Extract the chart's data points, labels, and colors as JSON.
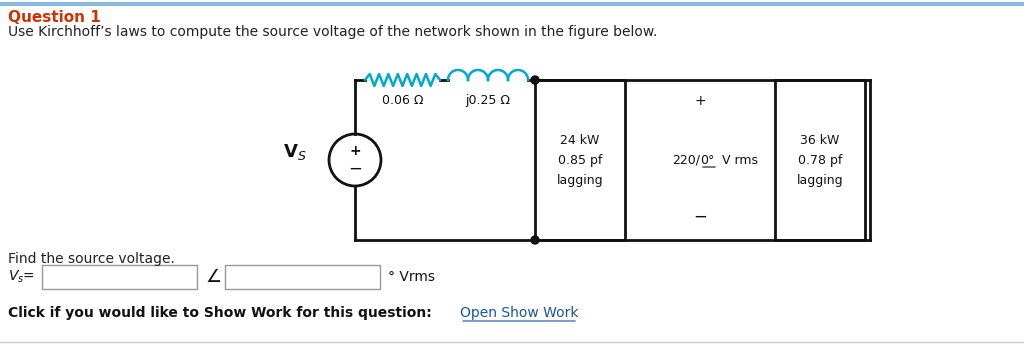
{
  "title": "Question 1",
  "title_color": "#cc3300",
  "subtitle": "Use Kirchhoff’s laws to compute the source voltage of the network shown in the figure below.",
  "subtitle_color": "#222222",
  "bg_color": "#ffffff",
  "find_text": "Find the source voltage.",
  "vs_label": "V_s=",
  "angle_symbol": "∠",
  "unit_text": "° Vrms",
  "click_text": "Click if you would like to Show Work for this question:",
  "open_work_text": "Open Show Work",
  "open_work_color": "#1a5599",
  "r1_label": "0.06 Ω",
  "r2_label": "j0.25 Ω",
  "load1_line1": "24 kW",
  "load1_line2": "0.85 pf",
  "load1_line3": "lagging",
  "source_label_a": "220/",
  "source_label_b": "0°",
  "source_label_c": " V rms",
  "load2_line1": "36 kW",
  "load2_line2": "0.78 pf",
  "load2_line3": "lagging",
  "resistor_color": "#00aacc",
  "inductor_color": "#00aacc",
  "circuit_color": "#111111",
  "font_size_title": 11,
  "font_size_body": 10,
  "font_size_small": 9,
  "top_border_color": "#88bbdd",
  "bottom_border_color": "#cccccc"
}
